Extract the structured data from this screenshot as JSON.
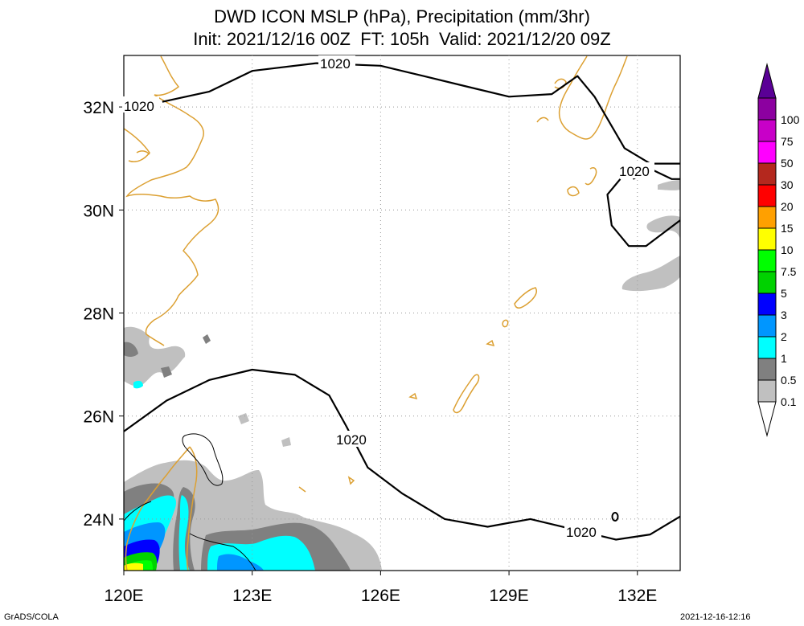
{
  "title": {
    "line1": "DWD ICON MSLP (hPa), Precipitation (mm/3hr)",
    "line2": "Init: 2021/12/16 00Z  FT: 105h  Valid: 2021/12/20 09Z"
  },
  "footer": {
    "left": "GrADS/COLA",
    "right": "2021-12-16-12:16"
  },
  "chart_data": {
    "type": "heatmap",
    "title": "DWD ICON MSLP (hPa), Precipitation (mm/3hr)",
    "subtitle": "Init: 2021/12/16 00Z  FT: 105h  Valid: 2021/12/20 09Z",
    "x_ticks": [
      120,
      123,
      126,
      129,
      132
    ],
    "x_tick_labels": [
      "120E",
      "123E",
      "126E",
      "129E",
      "132E"
    ],
    "y_ticks": [
      24,
      26,
      28,
      30,
      32
    ],
    "y_tick_labels": [
      "24N",
      "26N",
      "28N",
      "30N",
      "32N"
    ],
    "xlim": [
      120,
      133
    ],
    "ylim": [
      23,
      33
    ],
    "grid": true,
    "colorbar": {
      "levels": [
        "0.1",
        "0.5",
        "1",
        "2",
        "3",
        "5",
        "7.5",
        "10",
        "15",
        "20",
        "30",
        "50",
        "75",
        "100"
      ],
      "colors": [
        "#ffffff",
        "#c0c0c0",
        "#808080",
        "#00ffff",
        "#0096ff",
        "#0000ff",
        "#00d200",
        "#00ff00",
        "#ffff00",
        "#ffa000",
        "#ff0000",
        "#b4281e",
        "#ff00ff",
        "#c800c8",
        "#8c00a0",
        "#5a0096"
      ]
    },
    "isobars": [
      {
        "label": "1020",
        "points": [
          [
            120.9,
            32.1
          ],
          [
            122.0,
            32.3
          ],
          [
            123.0,
            32.7
          ],
          [
            124.5,
            32.85
          ],
          [
            126.0,
            32.8
          ],
          [
            127.0,
            32.6
          ],
          [
            128.0,
            32.4
          ],
          [
            129.0,
            32.2
          ],
          [
            130.0,
            32.25
          ],
          [
            130.6,
            32.6
          ],
          [
            131.0,
            32.2
          ],
          [
            131.7,
            31.2
          ],
          [
            132.3,
            30.9
          ],
          [
            133.0,
            30.9
          ]
        ]
      },
      {
        "label": "1020",
        "points": [
          [
            120.0,
            25.7
          ],
          [
            121.0,
            26.3
          ],
          [
            122.0,
            26.7
          ],
          [
            123.0,
            26.9
          ],
          [
            124.0,
            26.8
          ],
          [
            124.8,
            26.4
          ],
          [
            125.2,
            25.8
          ],
          [
            125.7,
            25.0
          ],
          [
            126.5,
            24.5
          ],
          [
            127.5,
            24.0
          ],
          [
            128.5,
            23.85
          ],
          [
            129.5,
            24.0
          ],
          [
            130.5,
            23.8
          ],
          [
            131.5,
            23.6
          ],
          [
            132.3,
            23.7
          ],
          [
            133.0,
            24.05
          ]
        ]
      },
      {
        "label": "1020",
        "points": [
          [
            131.9,
            30.6
          ],
          [
            132.3,
            30.8
          ],
          [
            132.8,
            30.6
          ],
          [
            133.0,
            30.6
          ]
        ]
      },
      {
        "label": "",
        "points": [
          [
            133.0,
            29.8
          ],
          [
            132.2,
            29.3
          ],
          [
            131.8,
            29.3
          ],
          [
            131.4,
            29.7
          ],
          [
            131.3,
            30.3
          ],
          [
            131.6,
            30.6
          ]
        ]
      }
    ]
  }
}
